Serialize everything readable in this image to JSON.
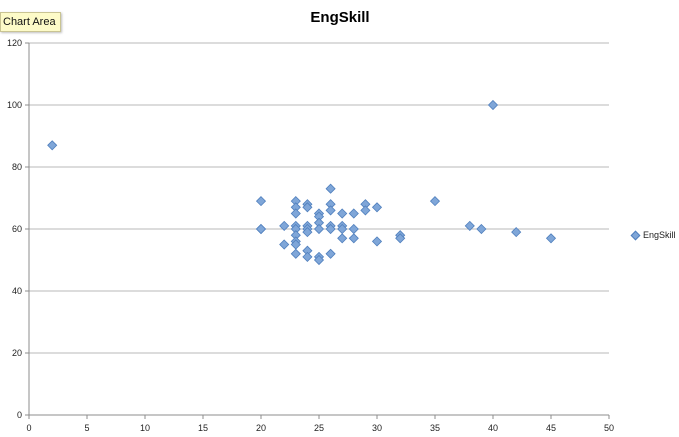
{
  "tooltip": {
    "text": "Chart Area"
  },
  "chart_data": {
    "type": "scatter",
    "title": "EngSkill",
    "xlabel": "",
    "ylabel": "",
    "xlim": [
      0,
      50
    ],
    "ylim": [
      0,
      120
    ],
    "x_ticks": [
      0,
      5,
      10,
      15,
      20,
      25,
      30,
      35,
      40,
      45,
      50
    ],
    "y_ticks": [
      0,
      20,
      40,
      60,
      80,
      100,
      120
    ],
    "grid": {
      "horizontal": true,
      "vertical": false
    },
    "legend_position": "right",
    "marker": "diamond",
    "colors": {
      "marker_fill": "#7fa6d8",
      "marker_stroke": "#4f7fbd",
      "grid": "#b8b8b8",
      "axis": "#8c8c8c"
    },
    "series": [
      {
        "name": "EngSkill",
        "points": [
          [
            2,
            87
          ],
          [
            20,
            69
          ],
          [
            20,
            60
          ],
          [
            20,
            60
          ],
          [
            22,
            61
          ],
          [
            22,
            55
          ],
          [
            23,
            69
          ],
          [
            23,
            67
          ],
          [
            23,
            65
          ],
          [
            23,
            61
          ],
          [
            23,
            60
          ],
          [
            23,
            58
          ],
          [
            23,
            56
          ],
          [
            23,
            55
          ],
          [
            23,
            52
          ],
          [
            24,
            68
          ],
          [
            24,
            67
          ],
          [
            24,
            61
          ],
          [
            24,
            60
          ],
          [
            24,
            59
          ],
          [
            24,
            53
          ],
          [
            24,
            51
          ],
          [
            25,
            65
          ],
          [
            25,
            64
          ],
          [
            25,
            62
          ],
          [
            25,
            60
          ],
          [
            25,
            51
          ],
          [
            25,
            50
          ],
          [
            26,
            73
          ],
          [
            26,
            68
          ],
          [
            26,
            66
          ],
          [
            26,
            61
          ],
          [
            26,
            60
          ],
          [
            26,
            52
          ],
          [
            27,
            65
          ],
          [
            27,
            61
          ],
          [
            27,
            60
          ],
          [
            27,
            57
          ],
          [
            28,
            65
          ],
          [
            28,
            60
          ],
          [
            28,
            57
          ],
          [
            29,
            68
          ],
          [
            29,
            66
          ],
          [
            30,
            67
          ],
          [
            30,
            56
          ],
          [
            32,
            58
          ],
          [
            32,
            57
          ],
          [
            35,
            69
          ],
          [
            38,
            61
          ],
          [
            39,
            60
          ],
          [
            40,
            100
          ],
          [
            42,
            59
          ],
          [
            45,
            57
          ]
        ]
      }
    ]
  }
}
